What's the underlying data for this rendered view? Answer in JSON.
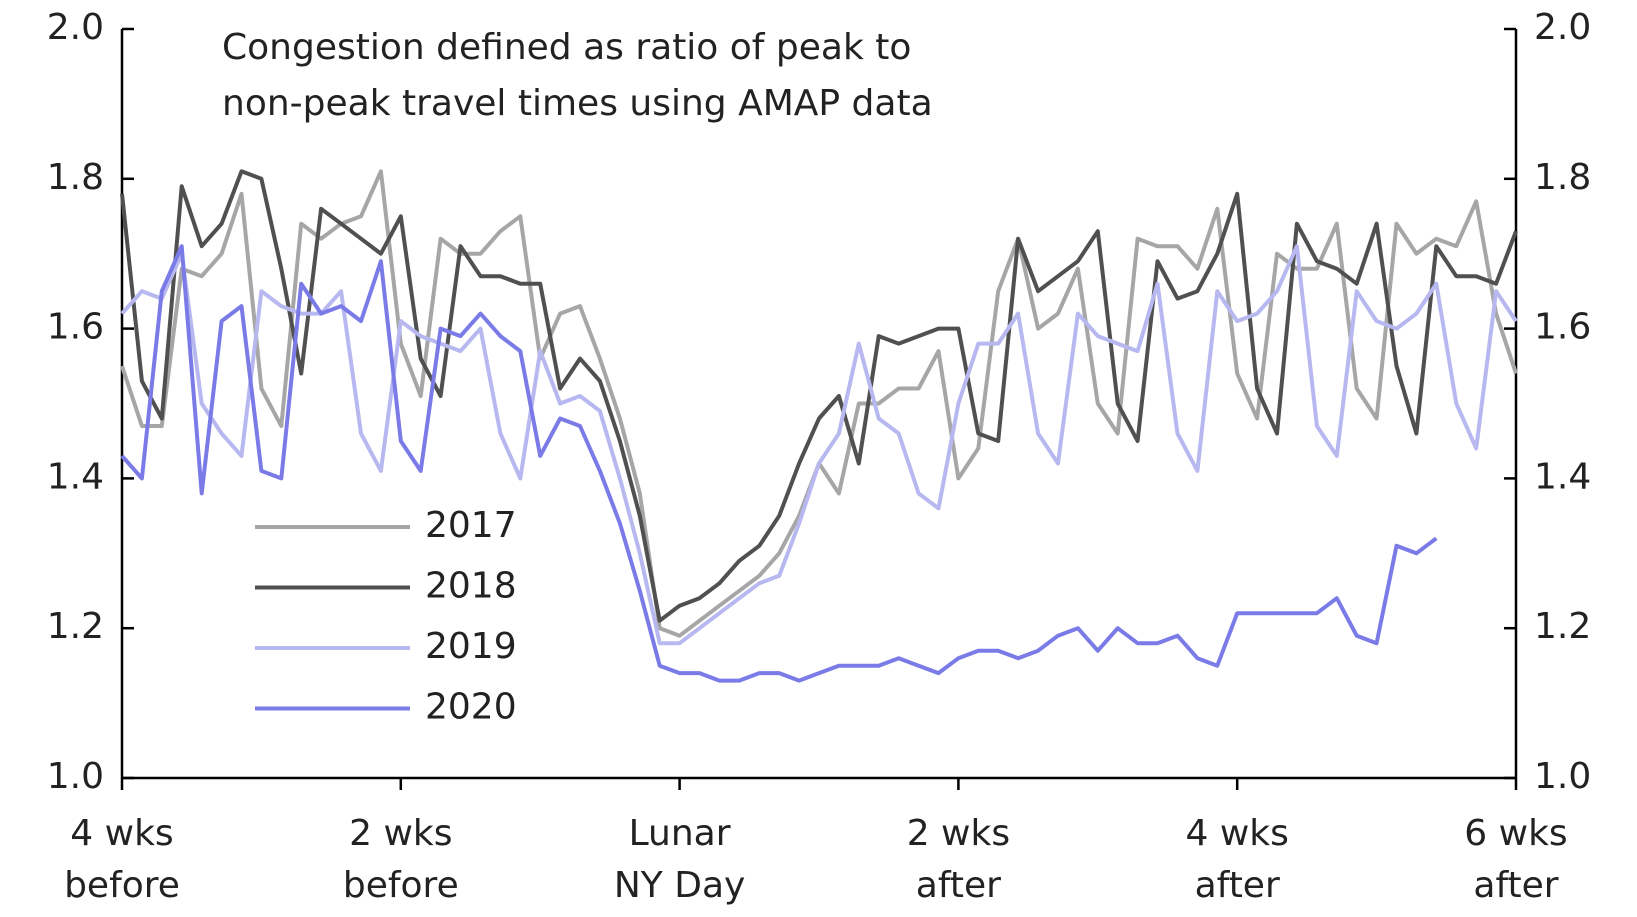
{
  "chart_data": {
    "type": "line",
    "annotation": "Congestion defined as ratio of peak to non-peak travel times using AMAP data",
    "x": [
      -28,
      -27,
      -26,
      -25,
      -24,
      -23,
      -22,
      -21,
      -20,
      -19,
      -18,
      -17,
      -16,
      -15,
      -14,
      -13,
      -12,
      -11,
      -10,
      -9,
      -8,
      -7,
      -6,
      -5,
      -4,
      -3,
      -2,
      -1,
      0,
      1,
      2,
      3,
      4,
      5,
      6,
      7,
      8,
      9,
      10,
      11,
      12,
      13,
      14,
      15,
      16,
      17,
      18,
      19,
      20,
      21,
      22,
      23,
      24,
      25,
      26,
      27,
      28,
      29,
      30,
      31,
      32,
      33,
      34,
      35,
      36,
      37,
      38,
      39,
      40,
      41,
      42
    ],
    "xlim": [
      -28,
      42
    ],
    "xticks": [
      {
        "value": -28,
        "label": "4 wks before"
      },
      {
        "value": -14,
        "label": "2 wks before"
      },
      {
        "value": 0,
        "label": "Lunar NY Day"
      },
      {
        "value": 14,
        "label": "2 wks after"
      },
      {
        "value": 28,
        "label": "4 wks after"
      },
      {
        "value": 42,
        "label": "6 wks after"
      }
    ],
    "ylim": [
      1.0,
      2.0
    ],
    "yticks": [
      {
        "value": 1.0,
        "label": "1.0"
      },
      1.2,
      1.4,
      1.6,
      1.8,
      {
        "value": 2.0,
        "label": "2.0"
      }
    ],
    "y2lim": [
      1.0,
      2.0
    ],
    "y2ticks": [
      {
        "value": 1.0,
        "label": "1.0"
      },
      1.2,
      1.4,
      1.6,
      1.8,
      {
        "value": 2.0,
        "label": "2.0"
      }
    ],
    "legend": "lower left",
    "series": [
      {
        "name": "2017",
        "color": "#a6a6a6",
        "values": [
          1.55,
          1.47,
          1.47,
          1.68,
          1.67,
          1.7,
          1.78,
          1.52,
          1.47,
          1.74,
          1.72,
          1.74,
          1.75,
          1.81,
          1.58,
          1.51,
          1.72,
          1.7,
          1.7,
          1.73,
          1.75,
          1.56,
          1.62,
          1.63,
          1.56,
          1.48,
          1.38,
          1.2,
          1.19,
          1.21,
          1.23,
          1.25,
          1.27,
          1.3,
          1.35,
          1.42,
          1.38,
          1.5,
          1.5,
          1.52,
          1.52,
          1.57,
          1.4,
          1.44,
          1.65,
          1.72,
          1.6,
          1.62,
          1.68,
          1.5,
          1.46,
          1.72,
          1.71,
          1.71,
          1.68,
          1.76,
          1.54,
          1.48,
          1.7,
          1.68,
          1.68,
          1.74,
          1.52,
          1.48,
          1.74,
          1.7,
          1.72,
          1.71,
          1.77,
          1.62,
          1.54
        ]
      },
      {
        "name": "2018",
        "color": "#505050",
        "values": [
          1.78,
          1.53,
          1.48,
          1.79,
          1.71,
          1.74,
          1.81,
          1.8,
          1.68,
          1.54,
          1.76,
          1.74,
          1.72,
          1.7,
          1.75,
          1.56,
          1.51,
          1.71,
          1.67,
          1.67,
          1.66,
          1.66,
          1.52,
          1.56,
          1.53,
          1.45,
          1.35,
          1.21,
          1.23,
          1.24,
          1.26,
          1.29,
          1.31,
          1.35,
          1.42,
          1.48,
          1.51,
          1.42,
          1.59,
          1.58,
          1.59,
          1.6,
          1.6,
          1.46,
          1.45,
          1.72,
          1.65,
          1.67,
          1.69,
          1.73,
          1.5,
          1.45,
          1.69,
          1.64,
          1.65,
          1.7,
          1.78,
          1.52,
          1.46,
          1.74,
          1.69,
          1.68,
          1.66,
          1.74,
          1.55,
          1.46,
          1.71,
          1.67,
          1.67,
          1.66,
          1.73
        ]
      },
      {
        "name": "2019",
        "color": "#b8b8f0",
        "values": [
          1.62,
          1.65,
          1.64,
          1.7,
          1.5,
          1.46,
          1.43,
          1.65,
          1.63,
          1.62,
          1.62,
          1.65,
          1.46,
          1.41,
          1.61,
          1.59,
          1.58,
          1.57,
          1.6,
          1.46,
          1.4,
          1.57,
          1.5,
          1.51,
          1.49,
          1.4,
          1.3,
          1.18,
          1.18,
          1.2,
          1.22,
          1.24,
          1.26,
          1.27,
          1.34,
          1.42,
          1.46,
          1.58,
          1.48,
          1.46,
          1.38,
          1.36,
          1.5,
          1.58,
          1.58,
          1.62,
          1.46,
          1.42,
          1.62,
          1.59,
          1.58,
          1.57,
          1.66,
          1.46,
          1.41,
          1.65,
          1.61,
          1.62,
          1.65,
          1.71,
          1.47,
          1.43,
          1.65,
          1.61,
          1.6,
          1.62,
          1.66,
          1.5,
          1.44,
          1.65,
          1.61
        ]
      },
      {
        "name": "2020",
        "color": "#7b7be8",
        "values": [
          1.43,
          1.4,
          1.65,
          1.71,
          1.38,
          1.61,
          1.63,
          1.41,
          1.4,
          1.66,
          1.62,
          1.63,
          1.61,
          1.69,
          1.45,
          1.41,
          1.6,
          1.59,
          1.62,
          1.59,
          1.57,
          1.43,
          1.48,
          1.47,
          1.41,
          1.34,
          1.25,
          1.15,
          1.14,
          1.14,
          1.13,
          1.13,
          1.14,
          1.14,
          1.13,
          1.14,
          1.15,
          1.15,
          1.15,
          1.16,
          1.15,
          1.14,
          1.16,
          1.17,
          1.17,
          1.16,
          1.17,
          1.19,
          1.2,
          1.17,
          1.2,
          1.18,
          1.18,
          1.19,
          1.16,
          1.15,
          1.22,
          1.22,
          1.22,
          1.22,
          1.22,
          1.24,
          1.19,
          1.18,
          1.31,
          1.3,
          1.32,
          null,
          null,
          null,
          null
        ]
      }
    ]
  }
}
